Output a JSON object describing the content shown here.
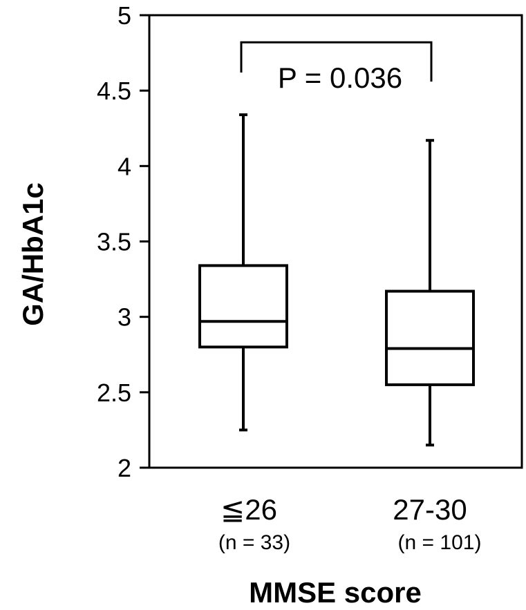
{
  "chart_data": {
    "type": "box",
    "title": "",
    "xlabel": "MMSE score",
    "ylabel": "GA/HbA1c",
    "ylim": [
      2,
      5
    ],
    "yticks": [
      "2",
      "2.5",
      "3",
      "3.5",
      "4",
      "4.5",
      "5"
    ],
    "grid": false,
    "legend": "none",
    "categories": [
      {
        "label": "≦26",
        "n_label": "(n = 33)",
        "min": 2.25,
        "q1": 2.8,
        "median": 2.97,
        "q3": 3.34,
        "max": 4.34
      },
      {
        "label": "27-30",
        "n_label": "(n = 101)",
        "min": 2.15,
        "q1": 2.55,
        "median": 2.79,
        "q3": 3.17,
        "max": 4.17
      }
    ],
    "annotation": {
      "text": "P = 0.036",
      "bracket_y": 4.82,
      "bracket_drop_y": 4.62,
      "right_drop_y": 4.56
    },
    "colors": {
      "stroke": "#000000",
      "background": "#ffffff"
    }
  }
}
